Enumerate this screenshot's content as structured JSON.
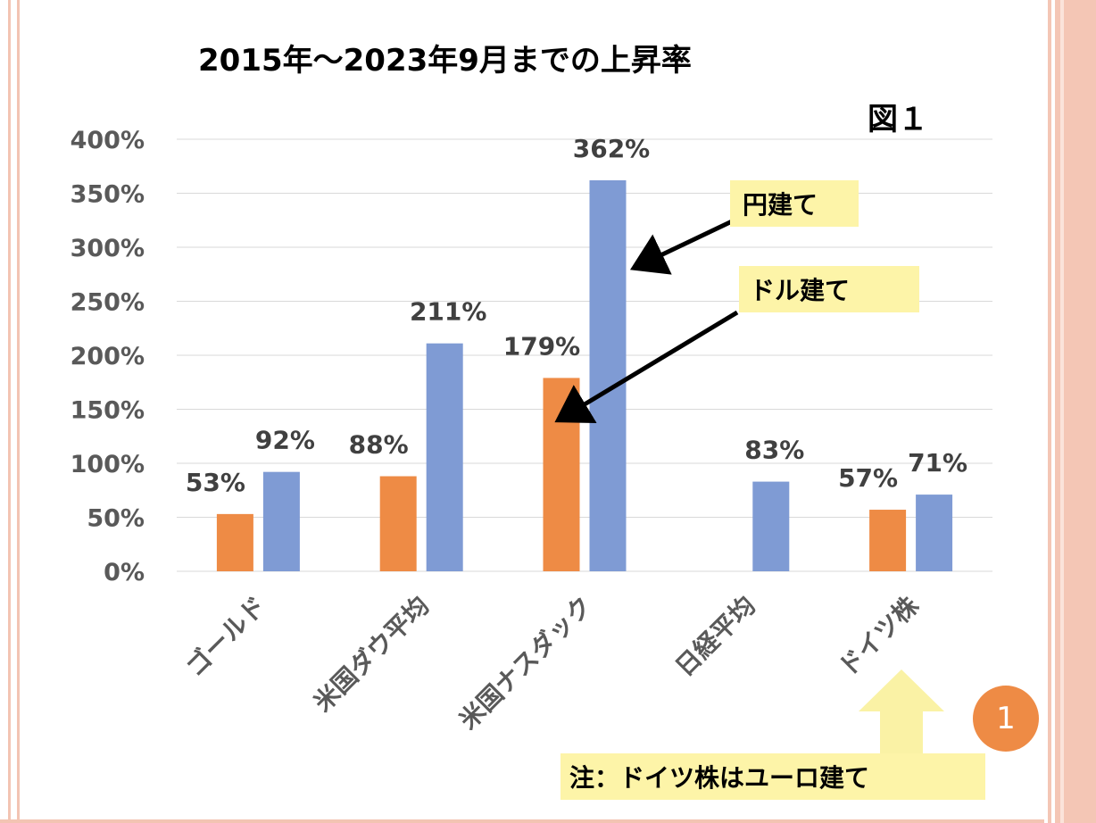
{
  "title": "2015年～2023年9月までの上昇率",
  "figure_label": "図１",
  "callouts": {
    "yen": "円建て",
    "dollar": "ドル建て",
    "note": "注：ドイツ株はユーロ建て"
  },
  "badge": "1",
  "colors": {
    "dollar_series": "#ee8b45",
    "yen_series": "#7f9bd4",
    "callout_bg": "#fdf4a8",
    "arrow_up": "#faf2a5",
    "border": "#f3c4b3"
  },
  "chart_data": {
    "type": "bar",
    "title": "2015年～2023年9月までの上昇率",
    "categories": [
      "ゴールド",
      "米国ダウ平均",
      "米国ナスダック",
      "日経平均",
      "ドイツ株"
    ],
    "series": [
      {
        "name": "ドル建て",
        "values": [
          53,
          88,
          179,
          null,
          57
        ],
        "labels": [
          "53%",
          "88%",
          "179%",
          "",
          "57%"
        ]
      },
      {
        "name": "円建て",
        "values": [
          92,
          211,
          362,
          83,
          71
        ],
        "labels": [
          "92%",
          "211%",
          "362%",
          "83%",
          "71%"
        ]
      }
    ],
    "ylim": [
      0,
      400
    ],
    "yticks": [
      "0%",
      "50%",
      "100%",
      "150%",
      "200%",
      "250%",
      "300%",
      "350%",
      "400%"
    ],
    "grid": true,
    "legend": "none"
  }
}
